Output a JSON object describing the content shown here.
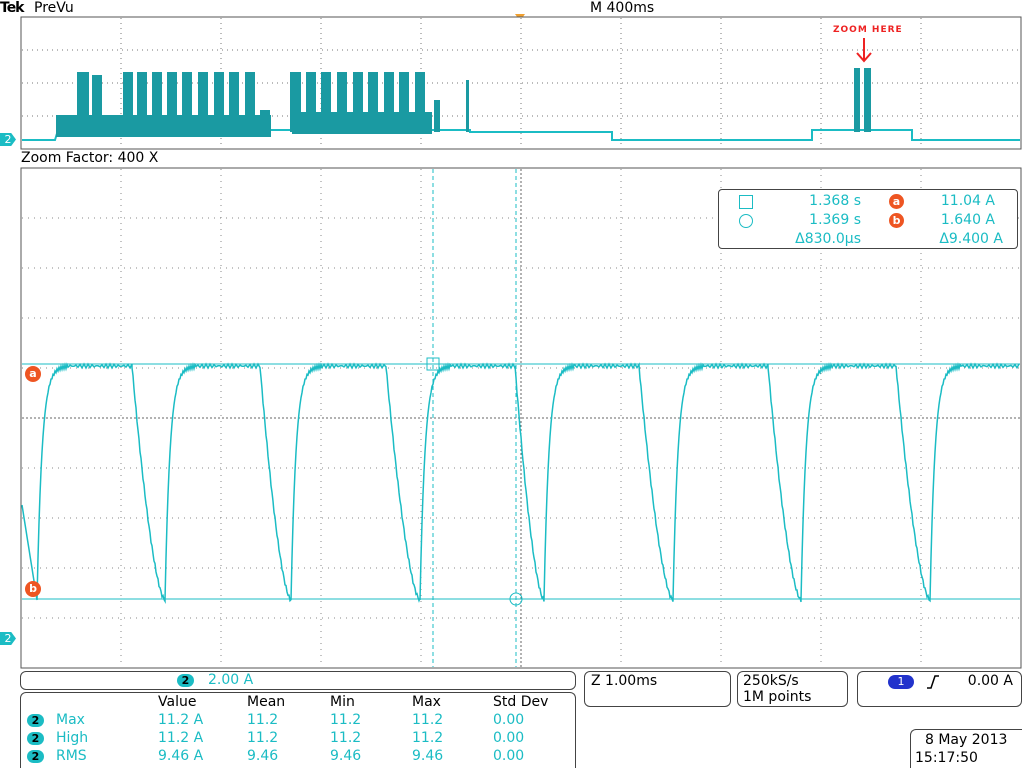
{
  "header": {
    "brand": "Tek",
    "mode": "PreVu",
    "timebase": "M 400ms"
  },
  "overview": {
    "annotation": "ZOOM HERE",
    "channel_marker": "2"
  },
  "zoom": {
    "label": "Zoom Factor: 400 X"
  },
  "cursors": {
    "cursor1_time": "1.368 s",
    "cursor2_time": "1.369 s",
    "delta_time": "Δ830.0µs",
    "marker_a": "a",
    "marker_b": "b",
    "a_value": "11.04 A",
    "b_value": "1.640 A",
    "delta_value": "Δ9.400 A"
  },
  "waveform": {
    "channel_marker": "2",
    "level_a_label": "a",
    "level_b_label": "b",
    "color": "#1bbcc4"
  },
  "channel_readout": {
    "channel": "2",
    "scale": "2.00 A"
  },
  "zoom_readout": {
    "text": "Z 1.00ms"
  },
  "acquisition": {
    "rate": "250kS/s",
    "points": "1M points"
  },
  "trigger": {
    "source": "1",
    "level": "0.00 A"
  },
  "measurements": {
    "columns": [
      "Value",
      "Mean",
      "Min",
      "Max",
      "Std Dev"
    ],
    "rows": [
      {
        "channel": "2",
        "name": "Max",
        "value": "11.2 A",
        "mean": "11.2",
        "min": "11.2",
        "max": "11.2",
        "std": "0.00"
      },
      {
        "channel": "2",
        "name": "High",
        "value": "11.2 A",
        "mean": "11.2",
        "min": "11.2",
        "max": "11.2",
        "std": "0.00"
      },
      {
        "channel": "2",
        "name": "RMS",
        "value": "9.46 A",
        "mean": "9.46",
        "min": "9.46",
        "max": "9.46",
        "std": "0.00"
      }
    ]
  },
  "datetime": {
    "date": "8 May 2013",
    "time": "15:17:50"
  }
}
